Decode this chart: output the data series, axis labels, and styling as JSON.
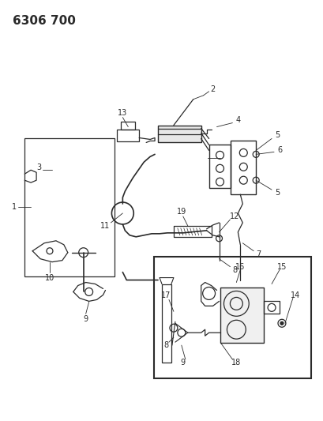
{
  "title": "6306 700",
  "bg": "#ffffff",
  "lc": "#2a2a2a",
  "fig_w": 4.1,
  "fig_h": 5.33,
  "dpi": 100
}
